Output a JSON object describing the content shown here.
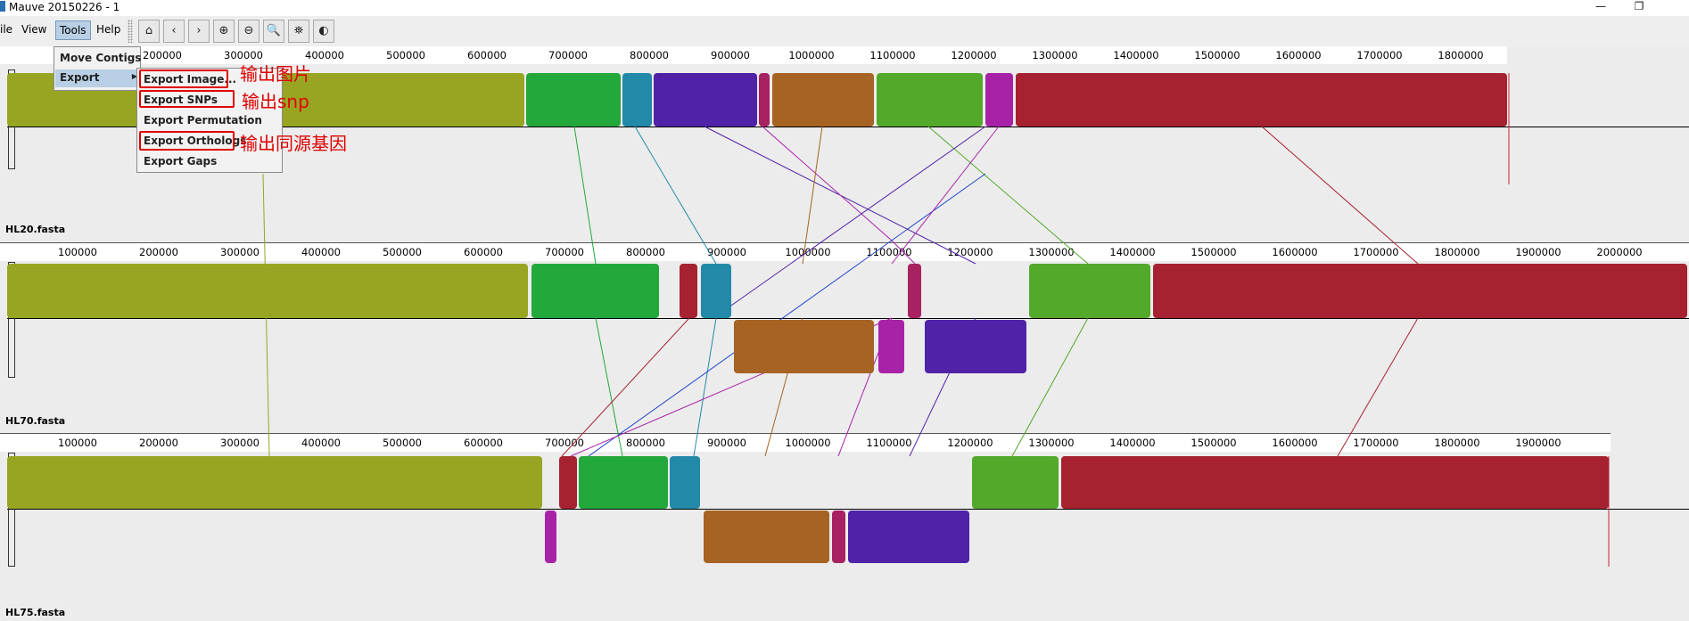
{
  "window": {
    "title": "Mauve 20150226 - 1",
    "minimize": "—",
    "restore": "❐"
  },
  "menubar": [
    {
      "label": "ile",
      "name": "menu-file"
    },
    {
      "label": "View",
      "name": "menu-view"
    },
    {
      "label": "Tools",
      "name": "menu-tools"
    },
    {
      "label": "Help",
      "name": "menu-help"
    }
  ],
  "toolbar": [
    {
      "name": "home-icon",
      "glyph": "⌂"
    },
    {
      "name": "back-icon",
      "glyph": "‹"
    },
    {
      "name": "forward-icon",
      "glyph": "›"
    },
    {
      "name": "zoom-in-icon",
      "glyph": "⊕"
    },
    {
      "name": "zoom-out-icon",
      "glyph": "⊖"
    },
    {
      "name": "zoom-reset-icon",
      "glyph": "🔍"
    },
    {
      "name": "binoculars-icon",
      "glyph": "⛯"
    },
    {
      "name": "color-scheme-icon",
      "glyph": "◐"
    }
  ],
  "tools_menu": {
    "move_contigs": "Move Contigs",
    "export": "Export",
    "export_arrow": "▶"
  },
  "export_submenu": [
    "Export Image...",
    "Export SNPs",
    "Export Permutation",
    "Export Orthologs",
    "Export Gaps"
  ],
  "annotations": {
    "image": "输出图片",
    "snp": "输出snp",
    "orthologs": "输出同源基因"
  },
  "colors": {
    "olive": "#98a522",
    "green": "#23a83b",
    "teal": "#2289a9",
    "purple": "#4f22a8",
    "magenta": "#a822a8",
    "brown": "#a66323",
    "lime": "#52a92a",
    "crimson": "#a62230",
    "red": "#e00000"
  },
  "genomes": [
    {
      "name": "HL20.fasta",
      "ticks": [
        "200000",
        "300000",
        "400000",
        "500000",
        "600000",
        "700000",
        "800000",
        "900000",
        "1000000",
        "1100000",
        "1200000",
        "1300000",
        "1400000",
        "1500000",
        "1600000",
        "1700000",
        "1800000"
      ]
    },
    {
      "name": "HL70.fasta",
      "ticks": [
        "100000",
        "200000",
        "300000",
        "400000",
        "500000",
        "600000",
        "700000",
        "800000",
        "900000",
        "1000000",
        "1100000",
        "1200000",
        "1300000",
        "1400000",
        "1500000",
        "1600000",
        "1700000",
        "1800000",
        "1900000",
        "2000000"
      ]
    },
    {
      "name": "HL75.fasta",
      "ticks": [
        "100000",
        "200000",
        "300000",
        "400000",
        "500000",
        "600000",
        "700000",
        "800000",
        "900000",
        "1000000",
        "1100000",
        "1200000",
        "1300000",
        "1400000",
        "1500000",
        "1600000",
        "1700000",
        "1800000",
        "1900000"
      ]
    }
  ]
}
